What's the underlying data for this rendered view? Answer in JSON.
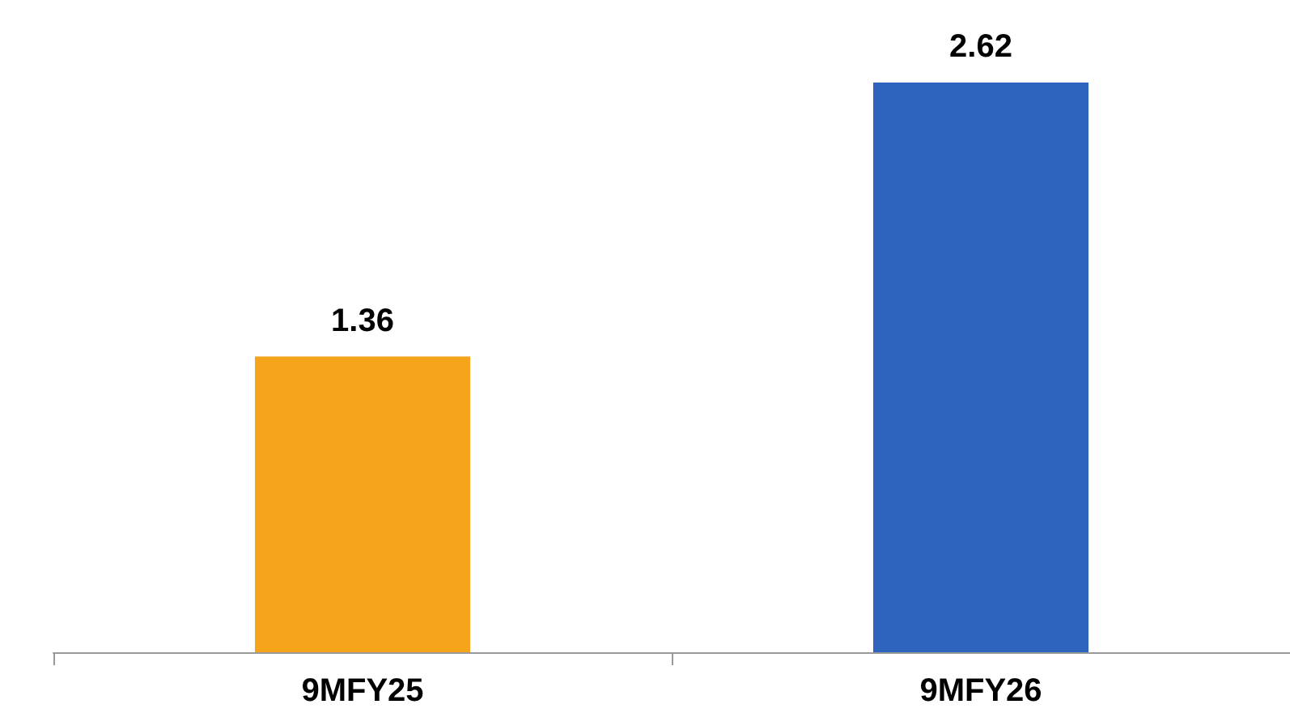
{
  "chart_data": {
    "type": "bar",
    "categories": [
      "9MFY25",
      "9MFY26"
    ],
    "values": [
      1.36,
      2.62
    ],
    "colors": [
      "#f5a41b",
      "#2e64be"
    ],
    "data_labels": true
  }
}
